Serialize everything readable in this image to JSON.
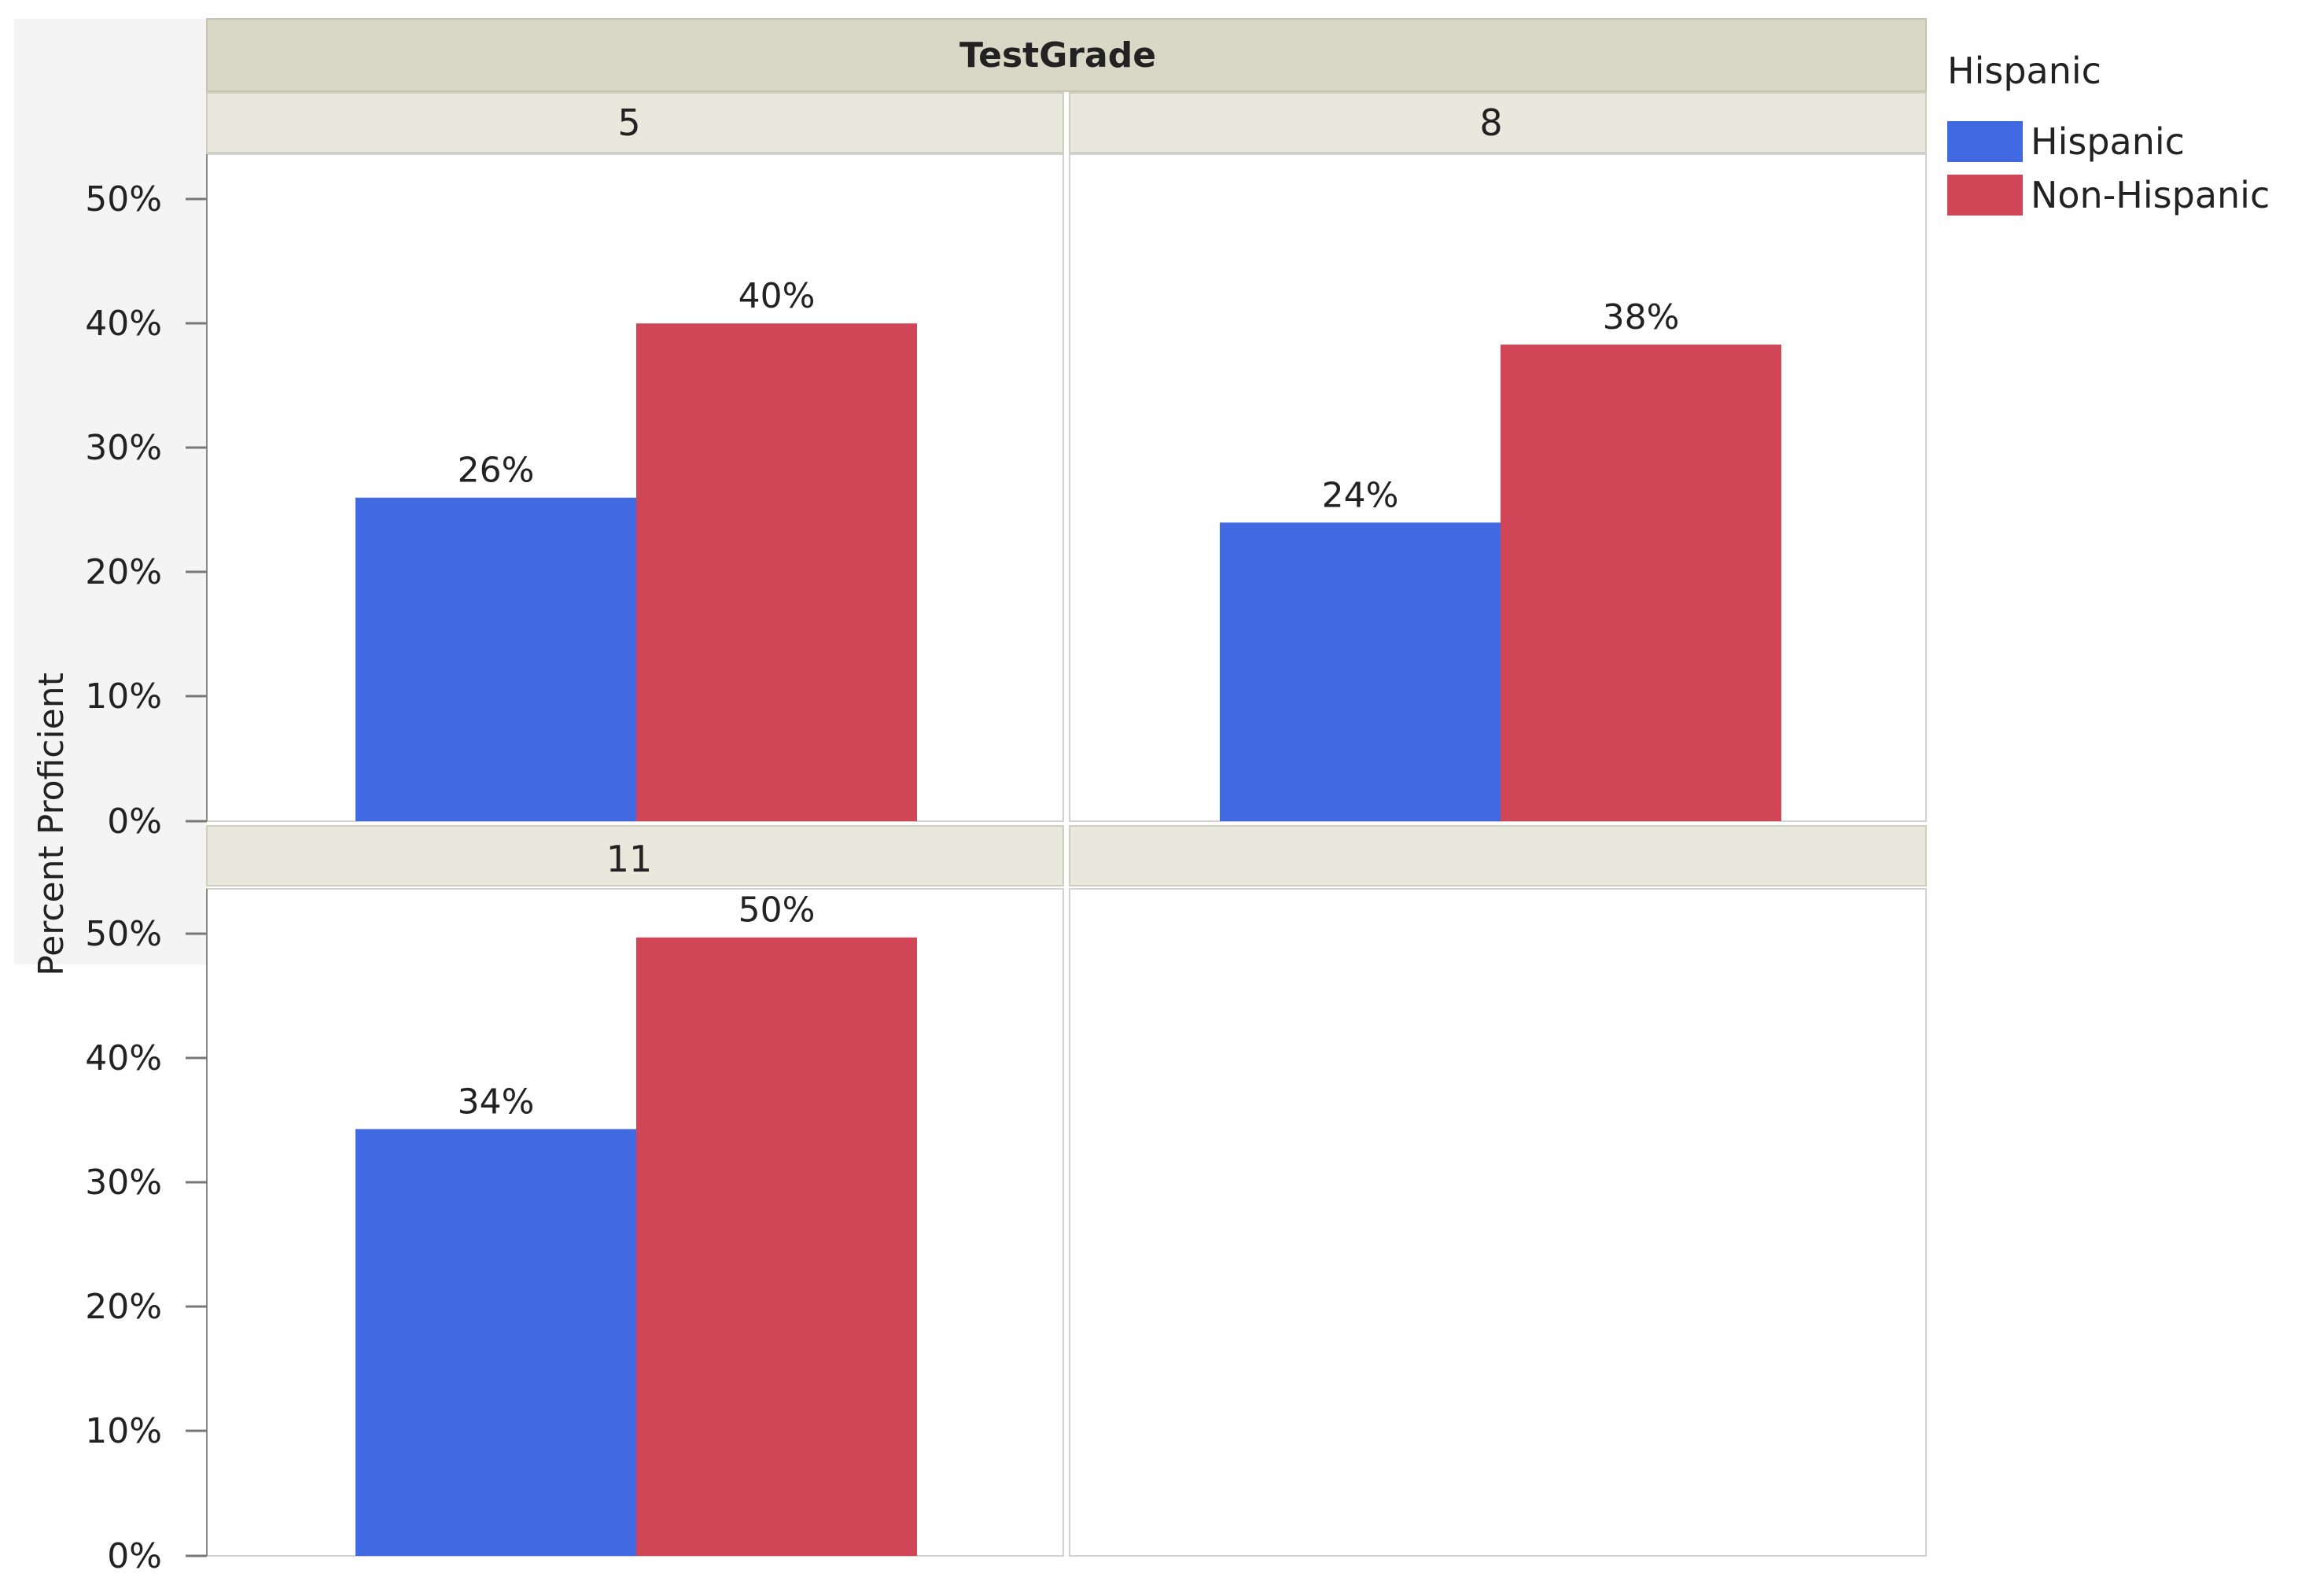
{
  "chart_data": {
    "type": "bar",
    "facet_title": "TestGrade",
    "ylabel": "Percent Proficient",
    "ylim": [
      0,
      50
    ],
    "yticks": [
      "0%",
      "10%",
      "20%",
      "30%",
      "40%",
      "50%"
    ],
    "legend": {
      "title": "Hispanic",
      "placement": "right",
      "items": [
        {
          "label": "Hispanic",
          "color": "#4169E1"
        },
        {
          "label": "Non-Hispanic",
          "color": "#D14656"
        }
      ]
    },
    "panels": [
      {
        "grade": "5",
        "values": [
          26,
          40
        ],
        "labels": [
          "26%",
          "40%"
        ]
      },
      {
        "grade": "8",
        "values": [
          24,
          38.3
        ],
        "labels": [
          "24%",
          "38%"
        ]
      },
      {
        "grade": "11",
        "values": [
          34.3,
          49.7
        ],
        "labels": [
          "34%",
          "50%"
        ]
      }
    ]
  }
}
